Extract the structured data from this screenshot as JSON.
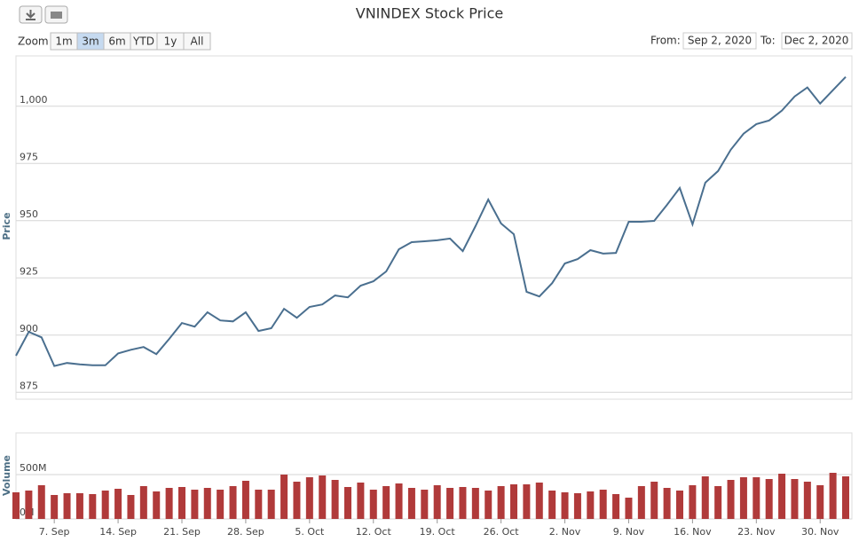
{
  "ui": {
    "title": "VNINDEX Stock Price",
    "zoom_label": "Zoom",
    "zoom_buttons": [
      "1m",
      "3m",
      "6m",
      "YTD",
      "1y",
      "All"
    ],
    "from_label": "From:",
    "from_value": "Sep 2, 2020",
    "to_label": "To:",
    "to_value": "Dec 2, 2020"
  },
  "chart_data": [
    {
      "type": "line",
      "y_label": "Price",
      "color": "#4a6f8f",
      "values": [
        891,
        901.4,
        899,
        886.5,
        887.8,
        887.2,
        886.8,
        886.8,
        892,
        893.6,
        894.8,
        891.7,
        898.3,
        905.3,
        903.7,
        910,
        906.4,
        906,
        910,
        901.8,
        903,
        911.5,
        907.6,
        912.3,
        913.4,
        917.3,
        916.5,
        921.6,
        923.5,
        927.8,
        937.5,
        940.6,
        941,
        941.4,
        942.2,
        936.7,
        947.6,
        959.2,
        948.8,
        944.1,
        918.9,
        916.9,
        922.7,
        931.3,
        933.2,
        937.1,
        935.6,
        935.9,
        949.5,
        949.5,
        949.9,
        956.9,
        964.3,
        948.4,
        966.6,
        971.7,
        981,
        988,
        992.2,
        993.8,
        998.1,
        1004.3,
        1008.2,
        1001.2,
        1007,
        1012.8
      ],
      "ylim": [
        872,
        1022
      ],
      "yticks": [
        875,
        900,
        925,
        950,
        975,
        {
          "value": 1000,
          "label": "1,000"
        }
      ],
      "grid": true
    },
    {
      "type": "bar",
      "y_label": "Volume",
      "color": "#b03a3a",
      "categories": [
        null,
        null,
        null,
        "7. Sep",
        null,
        null,
        null,
        null,
        "14. Sep",
        null,
        null,
        null,
        null,
        "21. Sep",
        null,
        null,
        null,
        null,
        "28. Sep",
        null,
        null,
        null,
        null,
        "5. Oct",
        null,
        null,
        null,
        null,
        "12. Oct",
        null,
        null,
        null,
        null,
        "19. Oct",
        null,
        null,
        null,
        null,
        "26. Oct",
        null,
        null,
        null,
        null,
        "2. Nov",
        null,
        null,
        null,
        null,
        "9. Nov",
        null,
        null,
        null,
        null,
        "16. Nov",
        null,
        null,
        null,
        null,
        "23. Nov",
        null,
        null,
        null,
        null,
        "30. Nov",
        null,
        null
      ],
      "values": [
        300,
        320,
        380,
        270,
        290,
        290,
        280,
        320,
        340,
        270,
        370,
        310,
        350,
        360,
        330,
        350,
        330,
        370,
        430,
        330,
        330,
        500,
        420,
        470,
        490,
        440,
        360,
        410,
        330,
        370,
        400,
        350,
        330,
        380,
        350,
        360,
        350,
        320,
        370,
        390,
        390,
        410,
        320,
        300,
        290,
        310,
        330,
        280,
        240,
        370,
        420,
        350,
        320,
        380,
        480,
        370,
        440,
        470,
        470,
        450,
        510,
        450,
        420,
        380,
        520,
        480
      ],
      "ylim": [
        0,
        970
      ],
      "yticks": [
        {
          "value": 0,
          "label": "0M"
        },
        {
          "value": 500,
          "label": "500M"
        }
      ],
      "grid": true
    }
  ]
}
